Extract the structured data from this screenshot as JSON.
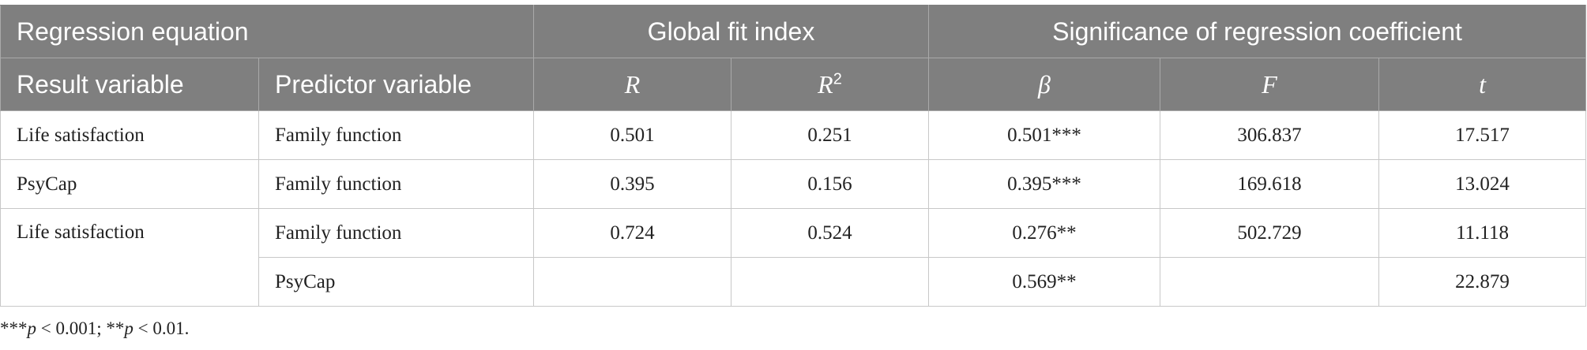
{
  "table": {
    "header": {
      "groups": [
        "Regression equation",
        "Global fit index",
        "Significance of regression coefficient"
      ],
      "columns": [
        "Result variable",
        "Predictor variable",
        "R",
        {
          "base": "R",
          "sup": "2"
        },
        "β",
        "F",
        "t"
      ]
    },
    "rows": [
      {
        "result": "Life satisfaction",
        "predictor": "Family function",
        "R": "0.501",
        "R2": "0.251",
        "beta": "0.501***",
        "F": "306.837",
        "t": "17.517"
      },
      {
        "result": "PsyCap",
        "predictor": "Family function",
        "R": "0.395",
        "R2": "0.156",
        "beta": "0.395***",
        "F": "169.618",
        "t": "13.024"
      },
      {
        "result": "Life satisfaction",
        "predictor": "Family function",
        "R": "0.724",
        "R2": "0.524",
        "beta": "0.276**",
        "F": "502.729",
        "t": "11.118"
      },
      {
        "predictor": "PsyCap",
        "beta": "0.569**",
        "t": "22.879"
      }
    ]
  },
  "footnote": [
    "***",
    "p",
    " < 0.001; **",
    "p",
    " < 0.01."
  ]
}
